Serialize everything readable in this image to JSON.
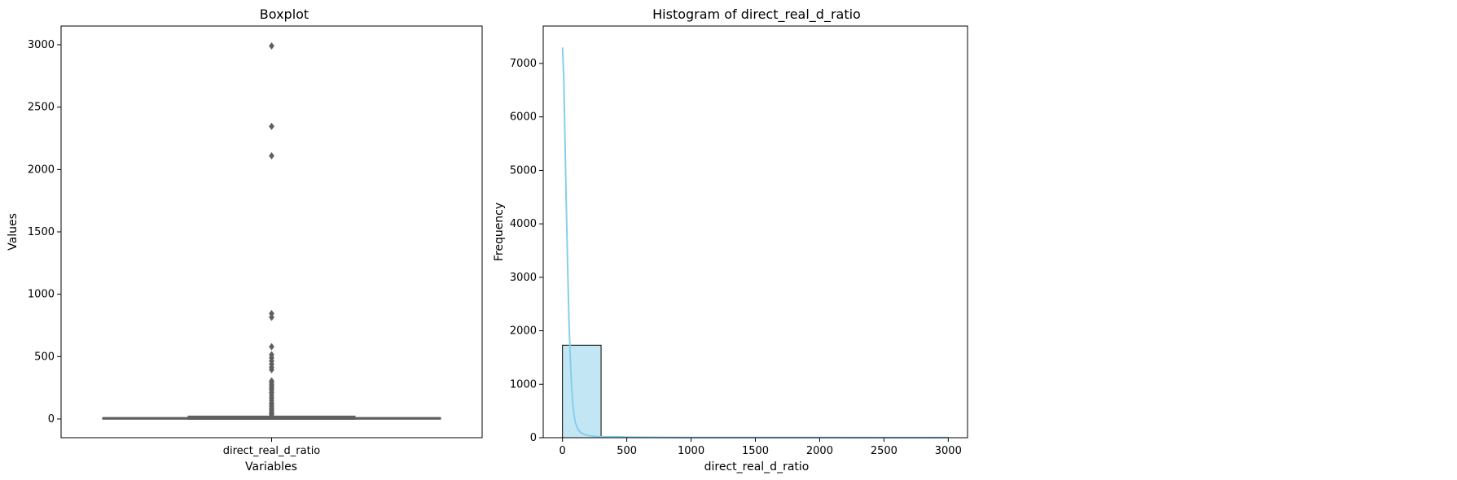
{
  "chart_data": [
    {
      "type": "box",
      "title": "Boxplot",
      "xlabel": "Variables",
      "ylabel": "Values",
      "categories": [
        "direct_real_d_ratio"
      ],
      "ylim": [
        -150,
        3150
      ],
      "yticks": [
        0,
        500,
        1000,
        1500,
        2000,
        2500,
        3000
      ],
      "box": {
        "q1": 1,
        "median": 4,
        "q3": 9,
        "whisker_low": 0,
        "whisker_high": 20
      },
      "outliers": [
        2990,
        2345,
        2110,
        845,
        815,
        580,
        515,
        490,
        465,
        440,
        415,
        395,
        305,
        290,
        275,
        260,
        245,
        230,
        210,
        190,
        170,
        150,
        130,
        115,
        100,
        85,
        70,
        55,
        45,
        35
      ],
      "colors": {
        "box": "#5f5f5f",
        "outlier": "#5f5f5f"
      }
    },
    {
      "type": "histogram",
      "title": "Histogram of direct_real_d_ratio",
      "xlabel": "direct_real_d_ratio",
      "ylabel": "Frequency",
      "xlim": [
        -150,
        3150
      ],
      "ylim": [
        0,
        7700
      ],
      "xticks": [
        0,
        500,
        1000,
        1500,
        2000,
        2500,
        3000
      ],
      "yticks": [
        0,
        1000,
        2000,
        3000,
        4000,
        5000,
        6000,
        7000
      ],
      "bins": [
        {
          "x0": 0,
          "x1": 300,
          "count": 1730
        },
        {
          "x0": 300,
          "x1": 600,
          "count": 13
        },
        {
          "x0": 600,
          "x1": 900,
          "count": 3
        },
        {
          "x0": 900,
          "x1": 1200,
          "count": 0
        },
        {
          "x0": 1200,
          "x1": 1500,
          "count": 0
        },
        {
          "x0": 1500,
          "x1": 1800,
          "count": 0
        },
        {
          "x0": 1800,
          "x1": 2100,
          "count": 0
        },
        {
          "x0": 2100,
          "x1": 2400,
          "count": 2
        },
        {
          "x0": 2400,
          "x1": 2700,
          "count": 0
        },
        {
          "x0": 2700,
          "x1": 3000,
          "count": 1
        }
      ],
      "kde": {
        "x": [
          0,
          10,
          20,
          30,
          40,
          50,
          60,
          70,
          80,
          90,
          100,
          120,
          140,
          170,
          200,
          250,
          300,
          400,
          500,
          700,
          1000,
          1500,
          2000,
          2500,
          3000
        ],
        "y": [
          7300,
          6700,
          5500,
          4300,
          3200,
          2200,
          1500,
          1000,
          650,
          420,
          280,
          160,
          100,
          60,
          40,
          25,
          15,
          18,
          12,
          8,
          5,
          3,
          5,
          2,
          3
        ]
      },
      "colors": {
        "bar_fill": "#87ceeb",
        "bar_alpha": 0.5,
        "bar_edge": "#000000",
        "kde": "#87ceeb"
      }
    }
  ]
}
